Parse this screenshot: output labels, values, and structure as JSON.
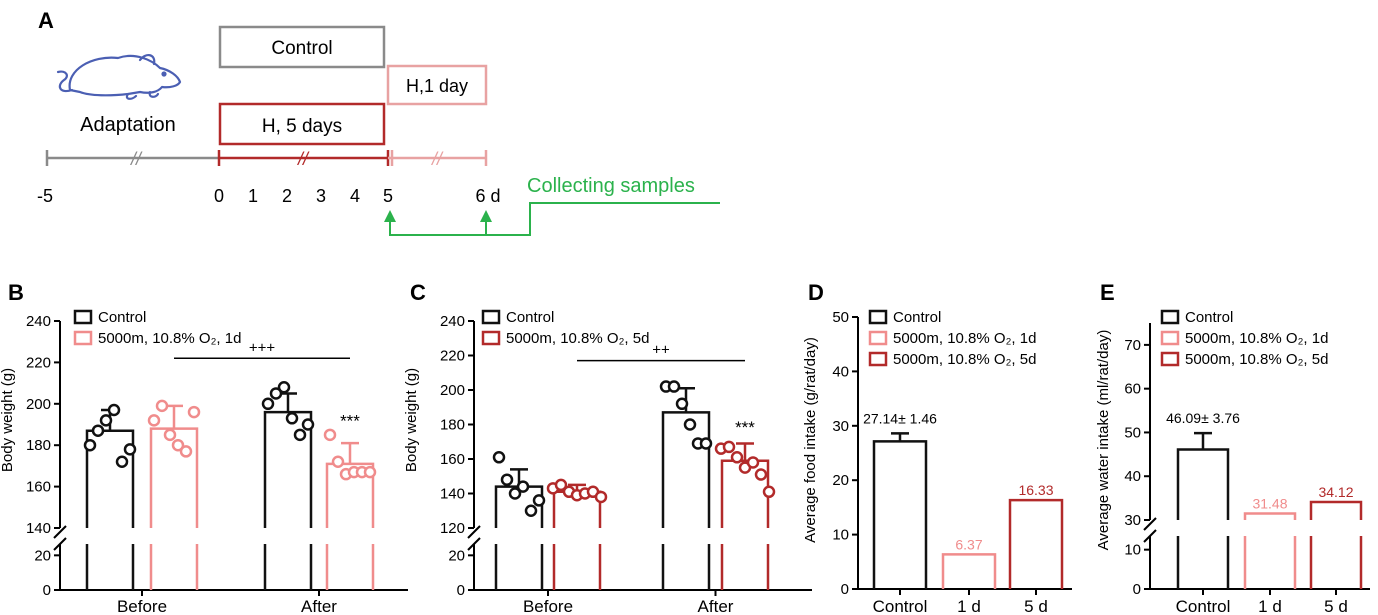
{
  "colors": {
    "black": "#111111",
    "pink": "#f08c8c",
    "darkred": "#b22a2a",
    "gray": "#8a8a8a",
    "green": "#2bb24c",
    "lightred": "#e8a2a2",
    "blue": "#4b5fb3"
  },
  "panelA": {
    "letter": "A",
    "adaptation": "Adaptation",
    "control_box": "Control",
    "h1_box": "H,1 day",
    "h5_box": "H, 5 days",
    "collecting": "Collecting  samples",
    "ticks": [
      "-5",
      "0",
      "1",
      "2",
      "3",
      "4",
      "5",
      "6 d"
    ],
    "break_mark": "//"
  },
  "chart_data": [
    {
      "panel": "B",
      "type": "bar",
      "categories": [
        "Before",
        "After"
      ],
      "ylabel": "Body weight (g)",
      "yticks_upper": [
        "140",
        "160",
        "180",
        "200",
        "220",
        "240"
      ],
      "yticks_lower": [
        "0",
        "20"
      ],
      "ylim_upper": [
        140,
        240
      ],
      "ylim_lower": [
        0,
        30
      ],
      "legend": [
        "Control",
        "5000m, 10.8% O₂, 1d"
      ],
      "series": [
        {
          "name": "Control",
          "color_key": "black",
          "values": [
            187,
            196
          ],
          "errors": [
            10,
            9
          ],
          "points": [
            [
              180,
              187,
              192,
              197,
              172,
              178
            ],
            [
              200,
              205,
              208,
              193,
              185,
              190
            ]
          ]
        },
        {
          "name": "5000m, 10.8% O₂, 1d",
          "color_key": "pink",
          "values": [
            188,
            171
          ],
          "errors": [
            11,
            10
          ],
          "points": [
            [
              192,
              199,
              185,
              180,
              177,
              196
            ],
            [
              185,
              172,
              166,
              167,
              167,
              167
            ]
          ]
        }
      ],
      "significance": [
        {
          "label": "+++",
          "from_bar": 1,
          "to_bar": 3,
          "y": 222
        }
      ],
      "stars": [
        {
          "bar": 3,
          "label": "***",
          "y": 189
        }
      ]
    },
    {
      "panel": "C",
      "type": "bar",
      "categories": [
        "Before",
        "After"
      ],
      "ylabel": "Body weight (g)",
      "yticks_upper": [
        "120",
        "140",
        "160",
        "180",
        "200",
        "220",
        "240"
      ],
      "yticks_lower": [
        "0",
        "20"
      ],
      "ylim_upper": [
        120,
        240
      ],
      "ylim_lower": [
        0,
        30
      ],
      "legend": [
        "Control",
        "5000m, 10.8% O₂, 5d"
      ],
      "series": [
        {
          "name": "Control",
          "color_key": "black",
          "values": [
            144,
            187
          ],
          "errors": [
            10,
            14
          ],
          "points": [
            [
              161,
              148,
              140,
              144,
              130,
              136
            ],
            [
              202,
              202,
              192,
              180,
              169,
              169
            ]
          ]
        },
        {
          "name": "5000m, 10.8% O₂, 5d",
          "color_key": "darkred",
          "values": [
            141,
            159
          ],
          "errors": [
            4,
            10
          ],
          "points": [
            [
              143,
              145,
              141,
              139,
              140,
              141,
              138
            ],
            [
              166,
              167,
              161,
              155,
              158,
              151,
              141
            ]
          ]
        }
      ],
      "significance": [
        {
          "label": "++",
          "from_bar": 1,
          "to_bar": 3,
          "y": 217
        }
      ],
      "stars": [
        {
          "bar": 3,
          "label": "***",
          "y": 175
        }
      ]
    },
    {
      "panel": "D",
      "type": "bar",
      "categories": [
        "Control",
        "1 d",
        "5 d"
      ],
      "ylabel": "Average food intake (g/rat/day)",
      "yticks": [
        "0",
        "10",
        "20",
        "30",
        "40",
        "50"
      ],
      "ylim": [
        0,
        50
      ],
      "legend": [
        "Control",
        "5000m, 10.8% O₂, 1d",
        "5000m, 10.8% O₂, 5d"
      ],
      "values": [
        27.14,
        6.37,
        16.33
      ],
      "errors": [
        1.46,
        0,
        0
      ],
      "color_keys": [
        "black",
        "pink",
        "darkred"
      ],
      "labels": [
        "27.14± 1.46",
        "6.37",
        "16.33"
      ]
    },
    {
      "panel": "E",
      "type": "bar",
      "categories": [
        "Control",
        "1 d",
        "5 d"
      ],
      "ylabel": "Average water intake (ml/rat/day)",
      "yticks_upper": [
        "30",
        "40",
        "50",
        "60",
        "70"
      ],
      "yticks_lower": [
        "0",
        "10"
      ],
      "ylim_upper": [
        30,
        75
      ],
      "ylim_lower": [
        0,
        15
      ],
      "legend": [
        "Control",
        "5000m, 10.8% O₂, 1d",
        "5000m, 10.8% O₂, 5d"
      ],
      "values": [
        46.09,
        31.48,
        34.12
      ],
      "errors": [
        3.76,
        0,
        0
      ],
      "color_keys": [
        "black",
        "pink",
        "darkred"
      ],
      "labels": [
        "46.09± 3.76",
        "31.48",
        "34.12"
      ]
    }
  ]
}
